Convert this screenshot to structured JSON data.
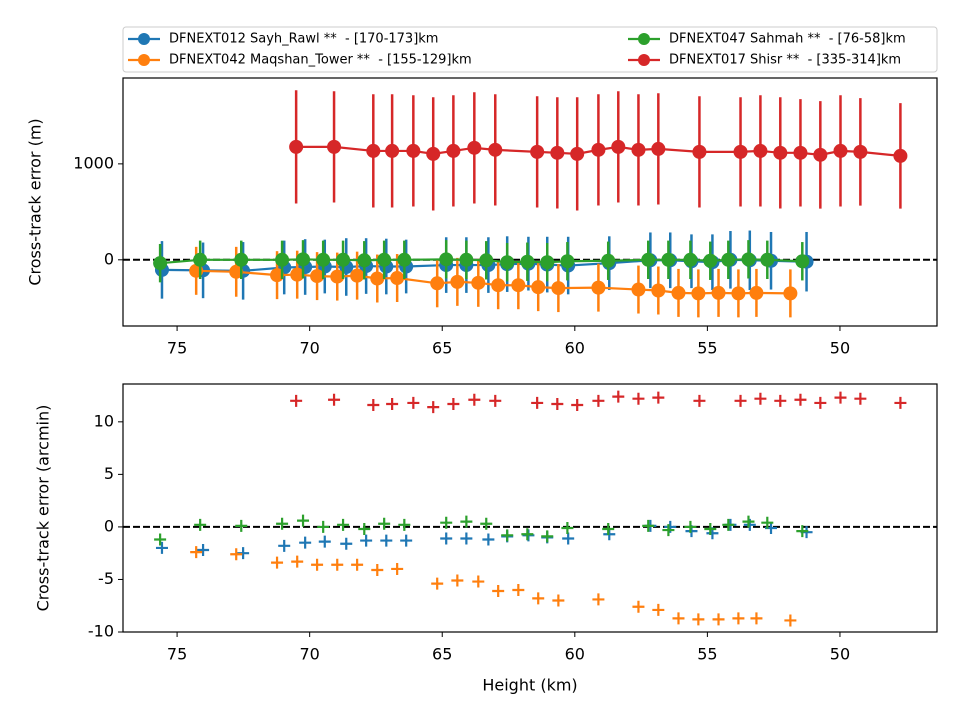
{
  "chart_data": [
    {
      "type": "errorbar",
      "ylabel": "Cross-track error (m)",
      "xlim": [
        77.04,
        46.34
      ],
      "xticks": [
        75,
        70,
        65,
        60,
        55,
        50
      ],
      "ylim": [
        -690,
        1895
      ],
      "yticks": [
        0,
        1000
      ],
      "hline": 0,
      "series": [
        {
          "name": "DFNEXT012 Sayh_Rawl **  - [170-173]km",
          "color": "#1f77b4",
          "x": [
            75.57,
            74.02,
            72.51,
            70.96,
            70.17,
            69.43,
            68.62,
            67.87,
            67.11,
            66.36,
            64.85,
            64.09,
            63.26,
            62.55,
            61.75,
            61.04,
            60.25,
            58.7,
            57.15,
            56.4,
            55.6,
            54.81,
            54.13,
            53.4,
            52.6,
            51.26
          ],
          "values": [
            -105,
            -110,
            -115,
            -80,
            -75,
            -70,
            -75,
            -65,
            -70,
            -70,
            -55,
            -55,
            -55,
            -45,
            -40,
            -50,
            -60,
            -35,
            -5,
            -5,
            -15,
            -25,
            0,
            -5,
            -10,
            -20
          ],
          "errors": [
            300,
            290,
            300,
            280,
            290,
            280,
            300,
            290,
            290,
            280,
            290,
            290,
            290,
            290,
            280,
            290,
            300,
            280,
            290,
            290,
            280,
            290,
            300,
            310,
            300,
            310
          ]
        },
        {
          "name": "DFNEXT042 Maqshan_Tower **  - [155-129]km",
          "color": "#ff7f0e",
          "x": [
            74.28,
            72.77,
            71.23,
            70.47,
            69.72,
            68.96,
            68.21,
            67.45,
            66.7,
            65.19,
            64.43,
            63.64,
            62.89,
            62.13,
            61.38,
            60.62,
            59.11,
            57.6,
            56.85,
            56.09,
            55.34,
            54.58,
            53.83,
            53.15,
            51.87
          ],
          "values": [
            -115,
            -125,
            -160,
            -155,
            -170,
            -175,
            -165,
            -195,
            -190,
            -245,
            -230,
            -240,
            -265,
            -265,
            -285,
            -295,
            -290,
            -310,
            -320,
            -345,
            -350,
            -345,
            -350,
            -345,
            -350
          ],
          "errors": [
            250,
            260,
            250,
            250,
            250,
            250,
            250,
            250,
            250,
            250,
            250,
            250,
            250,
            250,
            250,
            250,
            250,
            250,
            250,
            250,
            250,
            250,
            250,
            250,
            250
          ]
        },
        {
          "name": "DFNEXT047 Sahmah **  - [76-58]km",
          "color": "#2ca02c",
          "x": [
            75.64,
            74.13,
            72.58,
            71.04,
            70.25,
            69.49,
            68.74,
            67.94,
            67.19,
            66.43,
            64.85,
            64.09,
            63.34,
            62.55,
            61.79,
            61.04,
            60.28,
            58.74,
            57.23,
            56.47,
            55.64,
            54.89,
            54.21,
            53.45,
            52.74,
            51.42
          ],
          "values": [
            -35,
            0,
            0,
            0,
            5,
            0,
            0,
            -5,
            0,
            0,
            5,
            0,
            -5,
            -25,
            -20,
            -25,
            -15,
            -10,
            0,
            0,
            0,
            -10,
            0,
            5,
            0,
            -15
          ],
          "errors": [
            200,
            200,
            200,
            200,
            200,
            200,
            200,
            200,
            200,
            200,
            200,
            200,
            200,
            200,
            200,
            200,
            200,
            200,
            200,
            200,
            200,
            200,
            200,
            200,
            200,
            200
          ]
        },
        {
          "name": "DFNEXT017 Shisr **  - [335-314]km",
          "color": "#d62728",
          "x": [
            70.51,
            69.08,
            67.6,
            66.89,
            66.09,
            65.34,
            64.58,
            63.79,
            63.0,
            61.42,
            60.66,
            59.91,
            59.11,
            58.36,
            57.6,
            56.85,
            55.3,
            53.75,
            53.0,
            52.25,
            51.49,
            50.74,
            49.98,
            49.23,
            47.72
          ],
          "values": [
            1177,
            1177,
            1135,
            1135,
            1135,
            1104,
            1135,
            1167,
            1146,
            1125,
            1115,
            1104,
            1146,
            1177,
            1146,
            1156,
            1125,
            1125,
            1135,
            1115,
            1115,
            1094,
            1135,
            1125,
            1083
          ],
          "errors": [
            590,
            580,
            590,
            590,
            580,
            590,
            580,
            580,
            580,
            580,
            580,
            590,
            580,
            580,
            580,
            580,
            580,
            570,
            580,
            580,
            560,
            560,
            580,
            560,
            550
          ]
        }
      ]
    },
    {
      "type": "scatter",
      "ylabel": "Cross-track error (arcmin)",
      "xlabel": "Height (km)",
      "xlim": [
        77.04,
        46.34
      ],
      "xticks": [
        75,
        70,
        65,
        60,
        55,
        50
      ],
      "ylim": [
        -10,
        13.6
      ],
      "yticks": [
        -10,
        -5,
        0,
        5,
        10
      ],
      "hline": 0,
      "series": [
        {
          "color": "#1f77b4",
          "x": [
            75.57,
            74.02,
            72.51,
            70.96,
            70.17,
            69.43,
            68.62,
            67.87,
            67.11,
            66.36,
            64.85,
            64.09,
            63.26,
            62.55,
            61.75,
            61.04,
            60.25,
            58.7,
            57.15,
            56.4,
            55.6,
            54.81,
            54.13,
            53.4,
            52.6,
            51.26
          ],
          "values": [
            -2.0,
            -2.2,
            -2.5,
            -1.8,
            -1.5,
            -1.4,
            -1.6,
            -1.3,
            -1.3,
            -1.3,
            -1.1,
            -1.1,
            -1.2,
            -0.9,
            -0.8,
            -1.0,
            -1.1,
            -0.7,
            0.1,
            0.0,
            -0.4,
            -0.6,
            0.2,
            0.2,
            -0.1,
            -0.5
          ]
        },
        {
          "color": "#ff7f0e",
          "x": [
            74.28,
            72.77,
            71.23,
            70.47,
            69.72,
            68.96,
            68.21,
            67.45,
            66.7,
            65.19,
            64.43,
            63.64,
            62.89,
            62.13,
            61.38,
            60.62,
            59.11,
            57.6,
            56.85,
            56.09,
            55.34,
            54.58,
            53.83,
            53.15,
            51.87
          ],
          "values": [
            -2.4,
            -2.6,
            -3.4,
            -3.3,
            -3.6,
            -3.6,
            -3.6,
            -4.1,
            -4.0,
            -5.4,
            -5.1,
            -5.2,
            -6.1,
            -6.0,
            -6.8,
            -7.0,
            -6.9,
            -7.6,
            -7.9,
            -8.7,
            -8.8,
            -8.8,
            -8.7,
            -8.7,
            -8.9
          ]
        },
        {
          "color": "#2ca02c",
          "x": [
            75.64,
            74.13,
            72.58,
            71.04,
            70.25,
            69.49,
            68.74,
            67.94,
            67.19,
            66.43,
            64.85,
            64.09,
            63.34,
            62.55,
            61.79,
            61.04,
            60.28,
            58.74,
            57.23,
            56.47,
            55.64,
            54.89,
            54.21,
            53.45,
            52.74,
            51.42
          ],
          "values": [
            -1.2,
            0.2,
            0.1,
            0.3,
            0.6,
            0.0,
            0.2,
            -0.2,
            0.3,
            0.2,
            0.4,
            0.5,
            0.3,
            -0.8,
            -0.7,
            -0.9,
            -0.1,
            -0.2,
            0.1,
            -0.3,
            0.0,
            -0.2,
            0.2,
            0.5,
            0.4,
            -0.4
          ]
        },
        {
          "color": "#d62728",
          "x": [
            70.51,
            69.08,
            67.6,
            66.89,
            66.09,
            65.34,
            64.58,
            63.79,
            63.0,
            61.42,
            60.66,
            59.91,
            59.11,
            58.36,
            57.6,
            56.85,
            55.3,
            53.75,
            53.0,
            52.25,
            51.49,
            50.74,
            49.98,
            49.23,
            47.72
          ],
          "values": [
            12.0,
            12.1,
            11.6,
            11.7,
            11.8,
            11.4,
            11.7,
            12.1,
            12.0,
            11.8,
            11.7,
            11.6,
            12.0,
            12.4,
            12.2,
            12.3,
            12.0,
            12.0,
            12.2,
            12.0,
            12.1,
            11.8,
            12.3,
            12.2,
            11.8
          ]
        }
      ]
    }
  ]
}
